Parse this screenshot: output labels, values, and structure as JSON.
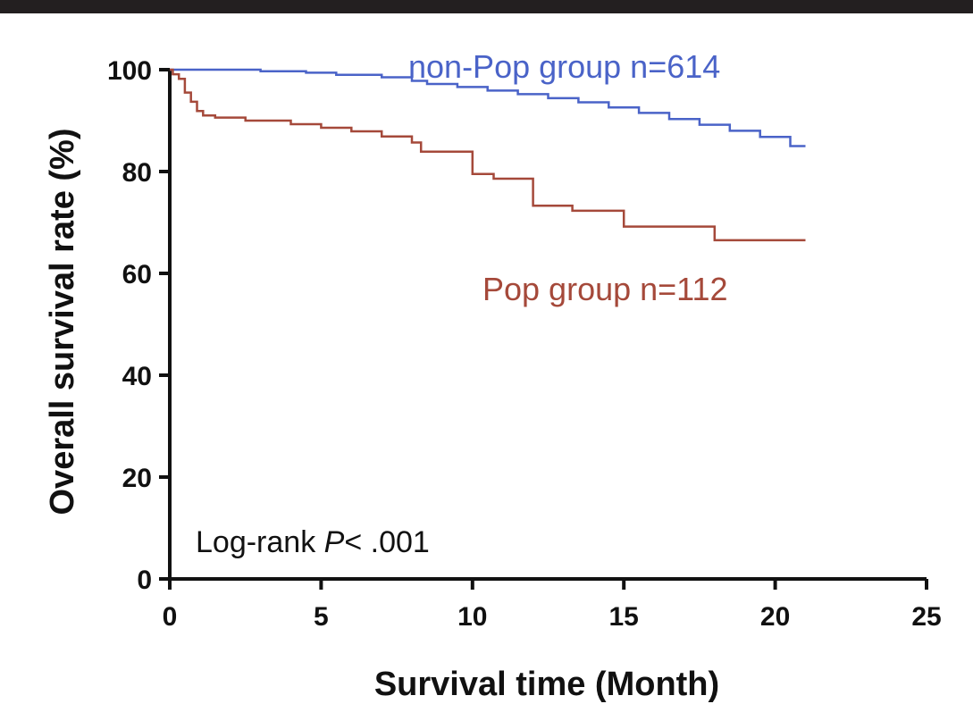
{
  "chart_data": {
    "type": "line",
    "title": "",
    "xlabel": "Survival time (Month)",
    "ylabel": "Overall survival rate (%)",
    "xlim": [
      0,
      25
    ],
    "ylim": [
      0,
      100
    ],
    "xticks": [
      0,
      5,
      10,
      15,
      20,
      25
    ],
    "yticks": [
      0,
      20,
      40,
      60,
      80,
      100
    ],
    "grid": false,
    "step": true,
    "series": [
      {
        "name": "non-Pop group",
        "label_text": "non-Pop group   n=614",
        "color": "#4a63c8",
        "x": [
          0,
          3,
          4.5,
          5.5,
          7,
          8,
          8.5,
          9.5,
          10.5,
          11.5,
          12.5,
          13.5,
          14.5,
          15.5,
          16.5,
          17.5,
          18.5,
          19.5,
          20.5,
          21
        ],
        "y": [
          100,
          99.7,
          99.4,
          99.0,
          98.5,
          97.8,
          97.2,
          96.6,
          95.9,
          95.2,
          94.4,
          93.6,
          92.6,
          91.5,
          90.3,
          89.2,
          88.0,
          86.8,
          85.0,
          85.0
        ]
      },
      {
        "name": "Pop group",
        "label_text": "Pop group  n=112",
        "color": "#a5493a",
        "x": [
          0,
          0.1,
          0.3,
          0.5,
          0.7,
          0.9,
          1.1,
          1.5,
          2.5,
          4,
          5,
          6,
          7,
          8,
          8.3,
          10,
          10.7,
          12,
          13.3,
          15,
          18,
          21
        ],
        "y": [
          100,
          99.1,
          98.2,
          95.5,
          93.7,
          91.9,
          91.0,
          90.6,
          90.0,
          89.3,
          88.6,
          87.9,
          86.9,
          85.7,
          83.9,
          79.5,
          78.6,
          73.3,
          72.3,
          69.2,
          66.5,
          66.5
        ]
      }
    ],
    "annotations": [
      {
        "prefix": "Log-rank ",
        "italic": "P",
        "suffix": "< .001"
      }
    ]
  }
}
